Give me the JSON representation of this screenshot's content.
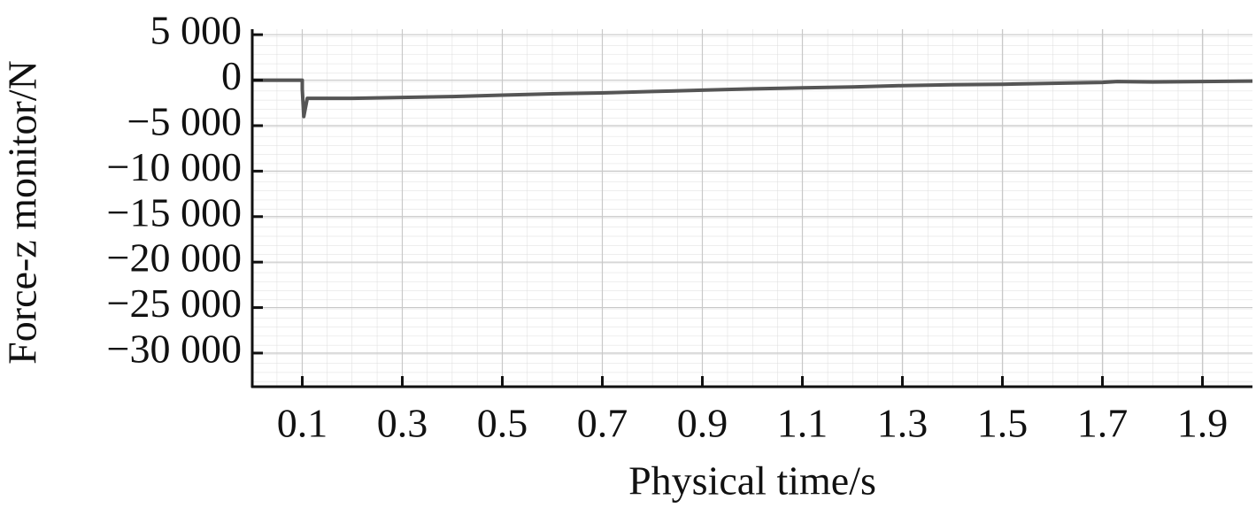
{
  "chart_data": {
    "type": "line",
    "x_label": "Physical time/s",
    "y_label": "Force-z monitor/N",
    "xlim": [
      0,
      2.0
    ],
    "ylim": [
      -33700,
      5600
    ],
    "xticks": [
      0.1,
      0.3,
      0.5,
      0.7,
      0.9,
      1.1,
      1.3,
      1.5,
      1.7,
      1.9
    ],
    "yticks": [
      {
        "value": 5000,
        "label": "5 000"
      },
      0,
      {
        "value": -5000,
        "label": "−5 000"
      },
      {
        "value": -10000,
        "label": "−10 000"
      },
      {
        "value": -15000,
        "label": "−15 000"
      },
      {
        "value": -20000,
        "label": "−20 000"
      },
      {
        "value": -25000,
        "label": "−25 000"
      },
      {
        "value": -30000,
        "label": "−30 000"
      }
    ],
    "grid": true,
    "series": [
      {
        "name": "Force-z",
        "color": "#555555",
        "x": [
          0,
          0.1,
          0.1,
          0.103,
          0.11,
          0.2,
          0.3,
          0.4,
          0.5,
          0.6,
          0.7,
          0.8,
          0.9,
          1.0,
          1.1,
          1.2,
          1.3,
          1.4,
          1.5,
          1.6,
          1.7,
          1.73,
          1.8,
          1.9,
          2.0
        ],
        "values": [
          0,
          0,
          -1000,
          -4000,
          -2000,
          -2000,
          -1900,
          -1800,
          -1650,
          -1500,
          -1400,
          -1250,
          -1100,
          -950,
          -850,
          -750,
          -600,
          -500,
          -450,
          -350,
          -250,
          -150,
          -200,
          -150,
          -100
        ]
      }
    ]
  }
}
